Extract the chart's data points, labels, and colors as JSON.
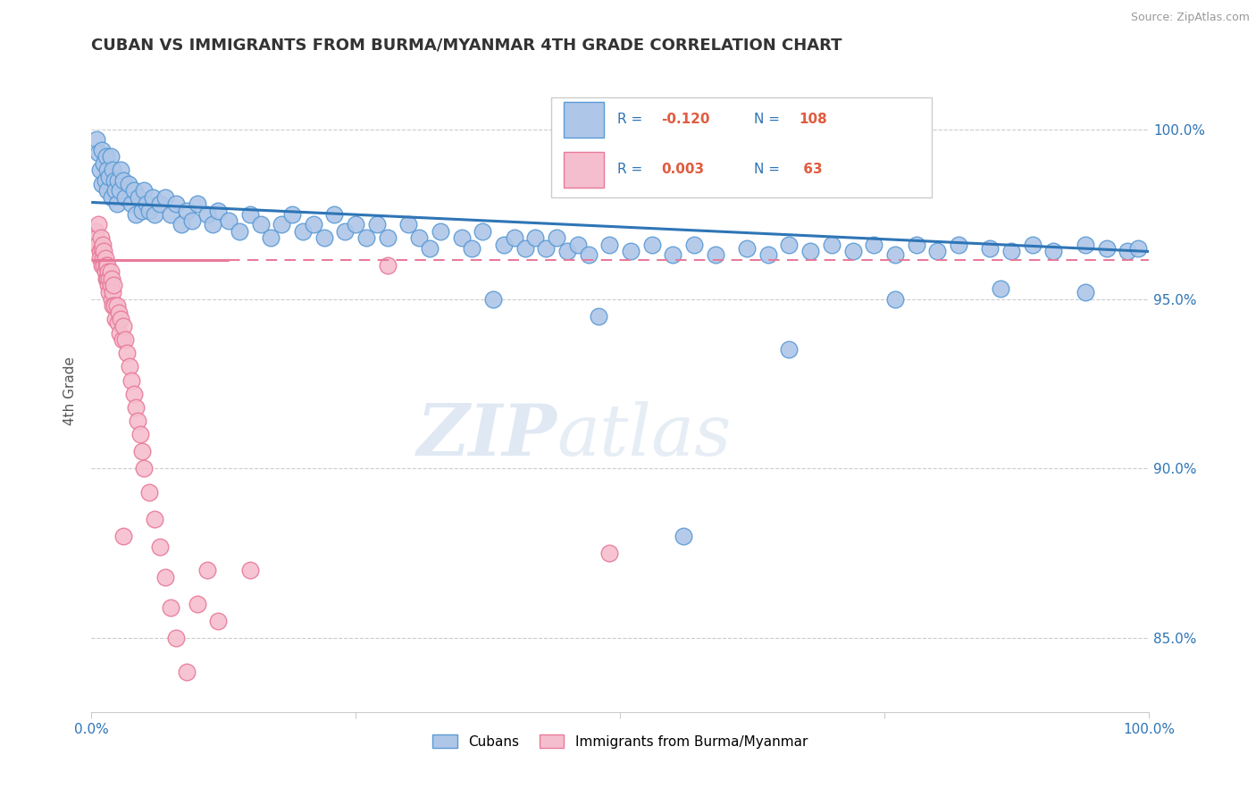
{
  "title": "CUBAN VS IMMIGRANTS FROM BURMA/MYANMAR 4TH GRADE CORRELATION CHART",
  "source": "Source: ZipAtlas.com",
  "ylabel": "4th Grade",
  "xlim": [
    0.0,
    1.0
  ],
  "ylim": [
    0.828,
    1.018
  ],
  "yticks": [
    0.85,
    0.9,
    0.95,
    1.0
  ],
  "ytick_labels": [
    "85.0%",
    "90.0%",
    "95.0%",
    "100.0%"
  ],
  "xtick_labels": [
    "0.0%",
    "",
    "",
    "",
    "100.0%"
  ],
  "blue_R": -0.12,
  "blue_N": 108,
  "pink_R": 0.003,
  "pink_N": 63,
  "blue_color": "#aec6e8",
  "blue_edge": "#5b9bd5",
  "pink_color": "#f5bece",
  "pink_edge": "#e87a9a",
  "blue_line_color": "#2e75b6",
  "pink_line_color": "#e87a9a",
  "legend_blue_label": "Cubans",
  "legend_pink_label": "Immigrants from Burma/Myanmar",
  "background_color": "#ffffff",
  "blue_line_x0": 0.0,
  "blue_line_y0": 0.9785,
  "blue_line_x1": 1.0,
  "blue_line_y1": 0.964,
  "pink_line_x0": 0.0,
  "pink_line_y0": 0.9615,
  "pink_line_x1": 0.15,
  "pink_line_y1": 0.9615,
  "blue_scatter_x": [
    0.005,
    0.007,
    0.008,
    0.01,
    0.01,
    0.012,
    0.013,
    0.014,
    0.015,
    0.015,
    0.017,
    0.018,
    0.019,
    0.02,
    0.022,
    0.023,
    0.024,
    0.025,
    0.027,
    0.028,
    0.03,
    0.032,
    0.035,
    0.038,
    0.04,
    0.042,
    0.045,
    0.048,
    0.05,
    0.052,
    0.055,
    0.058,
    0.06,
    0.065,
    0.07,
    0.075,
    0.08,
    0.085,
    0.09,
    0.095,
    0.1,
    0.11,
    0.115,
    0.12,
    0.13,
    0.14,
    0.15,
    0.16,
    0.17,
    0.18,
    0.19,
    0.2,
    0.21,
    0.22,
    0.23,
    0.24,
    0.25,
    0.26,
    0.27,
    0.28,
    0.3,
    0.31,
    0.32,
    0.33,
    0.35,
    0.36,
    0.37,
    0.39,
    0.4,
    0.41,
    0.42,
    0.43,
    0.44,
    0.45,
    0.46,
    0.47,
    0.49,
    0.51,
    0.53,
    0.55,
    0.57,
    0.59,
    0.62,
    0.64,
    0.66,
    0.68,
    0.7,
    0.72,
    0.74,
    0.76,
    0.78,
    0.8,
    0.82,
    0.85,
    0.87,
    0.89,
    0.91,
    0.94,
    0.96,
    0.98,
    0.38,
    0.48,
    0.56,
    0.66,
    0.76,
    0.86,
    0.94,
    0.99
  ],
  "blue_scatter_y": [
    0.997,
    0.993,
    0.988,
    0.994,
    0.984,
    0.99,
    0.985,
    0.992,
    0.988,
    0.982,
    0.986,
    0.992,
    0.98,
    0.988,
    0.985,
    0.982,
    0.978,
    0.985,
    0.982,
    0.988,
    0.985,
    0.98,
    0.984,
    0.978,
    0.982,
    0.975,
    0.98,
    0.976,
    0.982,
    0.978,
    0.976,
    0.98,
    0.975,
    0.978,
    0.98,
    0.975,
    0.978,
    0.972,
    0.976,
    0.973,
    0.978,
    0.975,
    0.972,
    0.976,
    0.973,
    0.97,
    0.975,
    0.972,
    0.968,
    0.972,
    0.975,
    0.97,
    0.972,
    0.968,
    0.975,
    0.97,
    0.972,
    0.968,
    0.972,
    0.968,
    0.972,
    0.968,
    0.965,
    0.97,
    0.968,
    0.965,
    0.97,
    0.966,
    0.968,
    0.965,
    0.968,
    0.965,
    0.968,
    0.964,
    0.966,
    0.963,
    0.966,
    0.964,
    0.966,
    0.963,
    0.966,
    0.963,
    0.965,
    0.963,
    0.966,
    0.964,
    0.966,
    0.964,
    0.966,
    0.963,
    0.966,
    0.964,
    0.966,
    0.965,
    0.964,
    0.966,
    0.964,
    0.966,
    0.965,
    0.964,
    0.95,
    0.945,
    0.88,
    0.935,
    0.95,
    0.953,
    0.952,
    0.965
  ],
  "pink_scatter_x": [
    0.004,
    0.005,
    0.006,
    0.007,
    0.008,
    0.008,
    0.009,
    0.01,
    0.01,
    0.011,
    0.011,
    0.012,
    0.012,
    0.013,
    0.013,
    0.014,
    0.014,
    0.015,
    0.015,
    0.016,
    0.016,
    0.017,
    0.017,
    0.018,
    0.018,
    0.019,
    0.019,
    0.02,
    0.02,
    0.021,
    0.022,
    0.023,
    0.024,
    0.025,
    0.026,
    0.027,
    0.028,
    0.029,
    0.03,
    0.032,
    0.034,
    0.036,
    0.038,
    0.04,
    0.042,
    0.044,
    0.046,
    0.048,
    0.05,
    0.055,
    0.06,
    0.065,
    0.07,
    0.075,
    0.08,
    0.09,
    0.1,
    0.11,
    0.12,
    0.15,
    0.28,
    0.49,
    0.03
  ],
  "pink_scatter_y": [
    0.97,
    0.968,
    0.966,
    0.972,
    0.964,
    0.962,
    0.968,
    0.965,
    0.96,
    0.966,
    0.962,
    0.964,
    0.96,
    0.962,
    0.958,
    0.96,
    0.956,
    0.96,
    0.956,
    0.958,
    0.954,
    0.956,
    0.952,
    0.958,
    0.954,
    0.95,
    0.956,
    0.952,
    0.948,
    0.954,
    0.948,
    0.944,
    0.948,
    0.943,
    0.946,
    0.94,
    0.944,
    0.938,
    0.942,
    0.938,
    0.934,
    0.93,
    0.926,
    0.922,
    0.918,
    0.914,
    0.91,
    0.905,
    0.9,
    0.893,
    0.885,
    0.877,
    0.868,
    0.859,
    0.85,
    0.84,
    0.86,
    0.87,
    0.855,
    0.87,
    0.96,
    0.875,
    0.88
  ]
}
